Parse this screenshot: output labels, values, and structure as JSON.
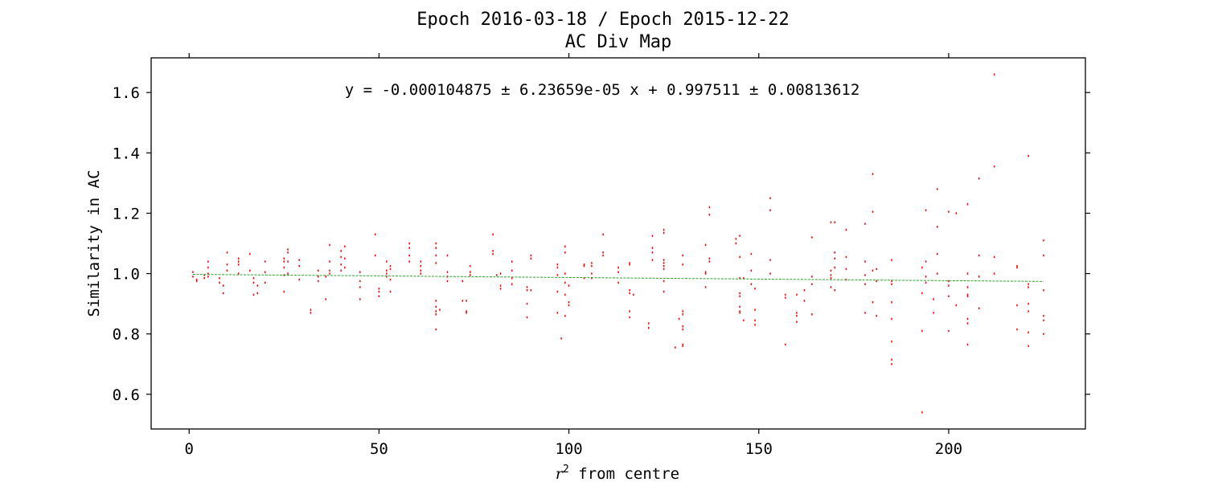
{
  "chart_data": {
    "type": "scatter",
    "title": "Epoch 2016-03-18 / Epoch 2015-12-22",
    "subtitle": "AC Div Map",
    "xlabel_math": "r",
    "xlabel_sup": "2",
    "xlabel_rest": " from centre",
    "ylabel": "Similarity in AC",
    "annotation": "y = -0.000104875 ± 6.23659e-05 x + 0.997511 ± 0.00813612",
    "xlim": [
      -10,
      236
    ],
    "ylim": [
      0.485,
      1.715
    ],
    "xticks": [
      0,
      50,
      100,
      150,
      200
    ],
    "yticks": [
      0.6,
      0.8,
      1.0,
      1.2,
      1.4,
      1.6
    ],
    "xtick_labels": [
      "0",
      "50",
      "100",
      "150",
      "200"
    ],
    "ytick_labels": [
      "0.6",
      "0.8",
      "1.0",
      "1.2",
      "1.4",
      "1.6"
    ],
    "fit": {
      "slope": -0.000104875,
      "intercept": 0.997511,
      "x_range": [
        1,
        225
      ]
    },
    "colors": {
      "points": "#ff0000",
      "fit_line": "#2ca02c",
      "axes": "#000000"
    },
    "grid": false,
    "points": [
      [
        1,
        1.005
      ],
      [
        1,
        0.99
      ],
      [
        2,
        0.98
      ],
      [
        2,
        0.975
      ],
      [
        4,
        0.995
      ],
      [
        4,
        0.985
      ],
      [
        5,
        1.04
      ],
      [
        5,
        1.02
      ],
      [
        5,
        0.99
      ],
      [
        5,
        1.0
      ],
      [
        8,
        0.985
      ],
      [
        8,
        0.97
      ],
      [
        9,
        0.96
      ],
      [
        9,
        0.935
      ],
      [
        10,
        1.07
      ],
      [
        10,
        1.03
      ],
      [
        10,
        1.01
      ],
      [
        13,
        1.05
      ],
      [
        13,
        1.04
      ],
      [
        13,
        1.03
      ],
      [
        13,
        1.0
      ],
      [
        16,
        1.065
      ],
      [
        16,
        1.01
      ],
      [
        17,
        0.985
      ],
      [
        17,
        0.97
      ],
      [
        17,
        0.93
      ],
      [
        18,
        0.96
      ],
      [
        18,
        0.935
      ],
      [
        20,
        1.04
      ],
      [
        20,
        1.005
      ],
      [
        20,
        0.97
      ],
      [
        25,
        1.05
      ],
      [
        25,
        1.04
      ],
      [
        25,
        1.02
      ],
      [
        25,
        0.995
      ],
      [
        25,
        0.94
      ],
      [
        26,
        1.08
      ],
      [
        26,
        1.07
      ],
      [
        26,
        1.04
      ],
      [
        26,
        1.0
      ],
      [
        29,
        1.045
      ],
      [
        29,
        1.025
      ],
      [
        29,
        0.98
      ],
      [
        32,
        0.88
      ],
      [
        32,
        0.87
      ],
      [
        34,
        1.01
      ],
      [
        34,
        0.99
      ],
      [
        34,
        0.975
      ],
      [
        36,
        0.99
      ],
      [
        36,
        0.915
      ],
      [
        37,
        1.095
      ],
      [
        37,
        1.04
      ],
      [
        37,
        1.01
      ],
      [
        37,
        1.0
      ],
      [
        40,
        1.075
      ],
      [
        40,
        1.055
      ],
      [
        40,
        1.03
      ],
      [
        40,
        1.01
      ],
      [
        41,
        1.09
      ],
      [
        41,
        1.05
      ],
      [
        41,
        1.02
      ],
      [
        45,
        1.005
      ],
      [
        45,
        0.975
      ],
      [
        45,
        0.955
      ],
      [
        45,
        0.915
      ],
      [
        49,
        1.13
      ],
      [
        49,
        1.06
      ],
      [
        50,
        0.95
      ],
      [
        50,
        0.94
      ],
      [
        50,
        0.925
      ],
      [
        52,
        1.04
      ],
      [
        52,
        1.01
      ],
      [
        52,
        1.0
      ],
      [
        52,
        0.99
      ],
      [
        53,
        1.025
      ],
      [
        53,
        1.015
      ],
      [
        53,
        0.98
      ],
      [
        53,
        0.94
      ],
      [
        58,
        1.1
      ],
      [
        58,
        1.085
      ],
      [
        58,
        1.06
      ],
      [
        58,
        1.04
      ],
      [
        61,
        1.04
      ],
      [
        61,
        1.025
      ],
      [
        61,
        1.01
      ],
      [
        61,
        1.0
      ],
      [
        65,
        1.1
      ],
      [
        65,
        1.085
      ],
      [
        65,
        1.06
      ],
      [
        65,
        1.035
      ],
      [
        65,
        0.91
      ],
      [
        65,
        0.89
      ],
      [
        65,
        0.875
      ],
      [
        65,
        0.865
      ],
      [
        65,
        0.815
      ],
      [
        66,
        0.88
      ],
      [
        68,
        1.06
      ],
      [
        68,
        1.005
      ],
      [
        68,
        0.99
      ],
      [
        68,
        0.975
      ],
      [
        72,
        0.975
      ],
      [
        72,
        0.91
      ],
      [
        73,
        0.91
      ],
      [
        73,
        0.875
      ],
      [
        73,
        0.87
      ],
      [
        74,
        1.025
      ],
      [
        74,
        1.005
      ],
      [
        74,
        0.995
      ],
      [
        80,
        1.13
      ],
      [
        80,
        1.075
      ],
      [
        80,
        1.065
      ],
      [
        81,
        0.995
      ],
      [
        82,
        1.0
      ],
      [
        82,
        0.96
      ],
      [
        82,
        0.95
      ],
      [
        85,
        1.04
      ],
      [
        85,
        1.01
      ],
      [
        85,
        0.985
      ],
      [
        85,
        0.965
      ],
      [
        89,
        0.955
      ],
      [
        89,
        0.945
      ],
      [
        89,
        0.9
      ],
      [
        89,
        0.855
      ],
      [
        90,
        1.06
      ],
      [
        90,
        1.05
      ],
      [
        90,
        0.945
      ],
      [
        97,
        1.03
      ],
      [
        97,
        1.02
      ],
      [
        97,
        0.995
      ],
      [
        97,
        0.94
      ],
      [
        97,
        0.87
      ],
      [
        98,
        0.785
      ],
      [
        99,
        1.09
      ],
      [
        99,
        1.07
      ],
      [
        99,
        1.0
      ],
      [
        99,
        0.97
      ],
      [
        99,
        0.93
      ],
      [
        99,
        0.86
      ],
      [
        100,
        0.96
      ],
      [
        100,
        0.905
      ],
      [
        100,
        0.895
      ],
      [
        104,
        1.03
      ],
      [
        104,
        1.025
      ],
      [
        104,
        0.985
      ],
      [
        106,
        1.035
      ],
      [
        106,
        1.025
      ],
      [
        106,
        1.0
      ],
      [
        106,
        0.985
      ],
      [
        109,
        1.13
      ],
      [
        109,
        1.07
      ],
      [
        109,
        1.06
      ],
      [
        113,
        1.02
      ],
      [
        113,
        1.005
      ],
      [
        113,
        0.97
      ],
      [
        116,
        1.035
      ],
      [
        116,
        1.03
      ],
      [
        116,
        0.945
      ],
      [
        116,
        0.935
      ],
      [
        116,
        0.875
      ],
      [
        116,
        0.855
      ],
      [
        117,
        0.93
      ],
      [
        121,
        0.835
      ],
      [
        121,
        0.82
      ],
      [
        122,
        1.125
      ],
      [
        122,
        1.085
      ],
      [
        122,
        1.07
      ],
      [
        122,
        1.045
      ],
      [
        125,
        1.145
      ],
      [
        125,
        1.135
      ],
      [
        125,
        1.045
      ],
      [
        125,
        1.035
      ],
      [
        125,
        1.025
      ],
      [
        125,
        1.015
      ],
      [
        125,
        0.975
      ],
      [
        125,
        0.94
      ],
      [
        128,
        0.755
      ],
      [
        129,
        0.85
      ],
      [
        130,
        1.06
      ],
      [
        130,
        1.03
      ],
      [
        130,
        0.875
      ],
      [
        130,
        0.865
      ],
      [
        130,
        0.825
      ],
      [
        130,
        0.815
      ],
      [
        130,
        0.765
      ],
      [
        130,
        0.76
      ],
      [
        136,
        1.095
      ],
      [
        136,
        1.005
      ],
      [
        136,
        1.0
      ],
      [
        136,
        0.955
      ],
      [
        137,
        1.22
      ],
      [
        137,
        1.195
      ],
      [
        137,
        1.05
      ],
      [
        137,
        1.04
      ],
      [
        144,
        1.115
      ],
      [
        144,
        1.1
      ],
      [
        145,
        1.125
      ],
      [
        145,
        1.055
      ],
      [
        145,
        0.985
      ],
      [
        145,
        0.935
      ],
      [
        145,
        0.925
      ],
      [
        145,
        0.89
      ],
      [
        145,
        0.875
      ],
      [
        145,
        0.87
      ],
      [
        146,
        0.985
      ],
      [
        146,
        0.845
      ],
      [
        148,
        1.065
      ],
      [
        148,
        1.01
      ],
      [
        148,
        0.965
      ],
      [
        149,
        0.95
      ],
      [
        149,
        0.88
      ],
      [
        149,
        0.845
      ],
      [
        149,
        0.83
      ],
      [
        153,
        1.25
      ],
      [
        153,
        1.21
      ],
      [
        153,
        1.045
      ],
      [
        153,
        1.0
      ],
      [
        157,
        0.93
      ],
      [
        157,
        0.92
      ],
      [
        157,
        0.765
      ],
      [
        160,
        0.93
      ],
      [
        160,
        0.87
      ],
      [
        160,
        0.86
      ],
      [
        160,
        0.84
      ],
      [
        162,
        0.945
      ],
      [
        162,
        0.91
      ],
      [
        164,
        1.12
      ],
      [
        164,
        0.99
      ],
      [
        164,
        0.965
      ],
      [
        164,
        0.865
      ],
      [
        169,
        1.17
      ],
      [
        169,
        1.01
      ],
      [
        169,
        0.995
      ],
      [
        169,
        0.985
      ],
      [
        169,
        0.955
      ],
      [
        170,
        1.17
      ],
      [
        170,
        1.07
      ],
      [
        170,
        1.05
      ],
      [
        170,
        1.02
      ],
      [
        170,
        0.945
      ],
      [
        173,
        1.145
      ],
      [
        173,
        1.055
      ],
      [
        173,
        1.015
      ],
      [
        173,
        0.98
      ],
      [
        178,
        1.165
      ],
      [
        178,
        1.04
      ],
      [
        178,
        0.995
      ],
      [
        178,
        0.965
      ],
      [
        178,
        0.87
      ],
      [
        180,
        1.33
      ],
      [
        180,
        1.205
      ],
      [
        180,
        1.01
      ],
      [
        180,
        0.905
      ],
      [
        181,
        1.015
      ],
      [
        181,
        0.975
      ],
      [
        181,
        0.86
      ],
      [
        185,
        1.045
      ],
      [
        185,
        0.975
      ],
      [
        185,
        0.965
      ],
      [
        185,
        0.905
      ],
      [
        185,
        0.85
      ],
      [
        185,
        0.775
      ],
      [
        185,
        0.715
      ],
      [
        185,
        0.7
      ],
      [
        193,
        1.02
      ],
      [
        193,
        0.935
      ],
      [
        193,
        0.81
      ],
      [
        193,
        0.54
      ],
      [
        194,
        1.21
      ],
      [
        194,
        1.04
      ],
      [
        194,
        0.99
      ],
      [
        194,
        0.97
      ],
      [
        196,
        0.915
      ],
      [
        196,
        0.87
      ],
      [
        197,
        1.28
      ],
      [
        197,
        1.155
      ],
      [
        197,
        1.065
      ],
      [
        197,
        1.0
      ],
      [
        200,
        1.205
      ],
      [
        200,
        0.975
      ],
      [
        200,
        0.96
      ],
      [
        200,
        0.925
      ],
      [
        200,
        0.81
      ],
      [
        202,
        1.2
      ],
      [
        202,
        0.895
      ],
      [
        205,
        1.23
      ],
      [
        205,
        1.0
      ],
      [
        205,
        0.955
      ],
      [
        205,
        0.93
      ],
      [
        205,
        0.925
      ],
      [
        205,
        0.85
      ],
      [
        205,
        0.835
      ],
      [
        205,
        0.765
      ],
      [
        208,
        1.315
      ],
      [
        208,
        1.06
      ],
      [
        208,
        0.99
      ],
      [
        208,
        0.885
      ],
      [
        212,
        1.66
      ],
      [
        212,
        1.355
      ],
      [
        212,
        1.055
      ],
      [
        212,
        1.0
      ],
      [
        218,
        1.025
      ],
      [
        218,
        1.02
      ],
      [
        218,
        0.895
      ],
      [
        218,
        0.815
      ],
      [
        221,
        1.39
      ],
      [
        221,
        0.965
      ],
      [
        221,
        0.955
      ],
      [
        221,
        0.9
      ],
      [
        221,
        0.875
      ],
      [
        221,
        0.805
      ],
      [
        221,
        0.76
      ],
      [
        225,
        1.11
      ],
      [
        225,
        1.06
      ],
      [
        225,
        0.945
      ],
      [
        225,
        0.86
      ],
      [
        225,
        0.845
      ],
      [
        225,
        0.8
      ]
    ]
  }
}
